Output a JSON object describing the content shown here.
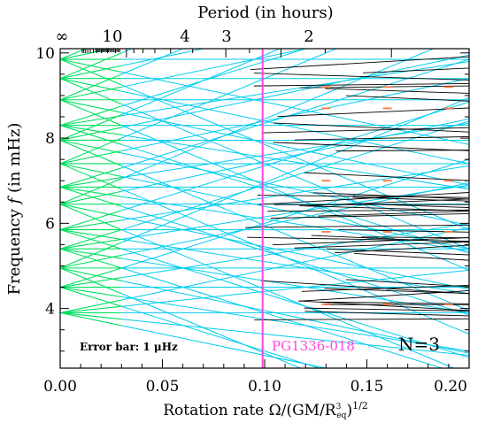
{
  "chart_data": {
    "type": "line",
    "top_axis": {
      "label": "Period (in hours)",
      "tick_labels": [
        "∞",
        "10",
        "4",
        "3",
        "2"
      ],
      "tick_hours": [
        null,
        10,
        4,
        3,
        2
      ]
    },
    "xlabel": "Rotation rate Ω/(GM/R³eq)^1/2",
    "ylabel": "Frequency f (in mHz)",
    "xlim": [
      0.0,
      0.2
    ],
    "ylim": [
      2.6,
      10.1
    ],
    "x_ticks": [
      "0.00",
      "0.05",
      "0.10",
      "0.15",
      "0.20"
    ],
    "y_ticks": [
      "4",
      "6",
      "8",
      "10"
    ],
    "annotations": {
      "error_bar": "Error bar: 1 μHz",
      "star": "PG1336-018",
      "n_label": "N=3"
    },
    "vertical_marker": {
      "x": 0.099,
      "color": "#ff44dd"
    },
    "colors": {
      "low_rotation": "#00e060",
      "model": "#00ccee",
      "high_rotation": "#000000",
      "observed": "#ff7744"
    },
    "series_fans": [
      {
        "f0": 3.9,
        "slopes": [
          -1.0,
          -0.5,
          0.0,
          0.5,
          1.0
        ]
      },
      {
        "f0": 4.5,
        "slopes": [
          -1.5,
          -0.75,
          0.0,
          0.75,
          1.5
        ]
      },
      {
        "f0": 4.95,
        "slopes": [
          -2.0,
          -1.0,
          0.0,
          1.0,
          2.0
        ]
      },
      {
        "f0": 5.4,
        "slopes": [
          -1.5,
          -0.75,
          0.0,
          0.75,
          1.5
        ]
      },
      {
        "f0": 5.85,
        "slopes": [
          -1.5,
          -0.75,
          0.0,
          0.75,
          1.5
        ]
      },
      {
        "f0": 6.45,
        "slopes": [
          -2.0,
          -1.0,
          0.0,
          1.0,
          2.0
        ]
      },
      {
        "f0": 6.85,
        "slopes": [
          -1.5,
          -0.75,
          0.0,
          0.75,
          1.5
        ]
      },
      {
        "f0": 7.4,
        "slopes": [
          -2.0,
          -1.0,
          0.0,
          1.0,
          2.0
        ]
      },
      {
        "f0": 7.95,
        "slopes": [
          -2.0,
          -1.0,
          0.0,
          1.0,
          2.0
        ]
      },
      {
        "f0": 8.3,
        "slopes": [
          -1.5,
          -0.75,
          0.0,
          0.75,
          1.5
        ]
      },
      {
        "f0": 8.9,
        "slopes": [
          -2.0,
          -1.0,
          0.0,
          1.0,
          2.0
        ]
      },
      {
        "f0": 9.4,
        "slopes": [
          -2.0,
          -1.0,
          0.0,
          1.0,
          2.0
        ]
      },
      {
        "f0": 9.85,
        "slopes": [
          -2.0,
          -1.0,
          0.0,
          1.0,
          2.0
        ]
      }
    ],
    "observed_x": [
      0.13,
      0.16,
      0.19
    ],
    "observed_f": [
      4.1,
      5.8,
      7.0,
      8.7,
      9.2
    ]
  }
}
